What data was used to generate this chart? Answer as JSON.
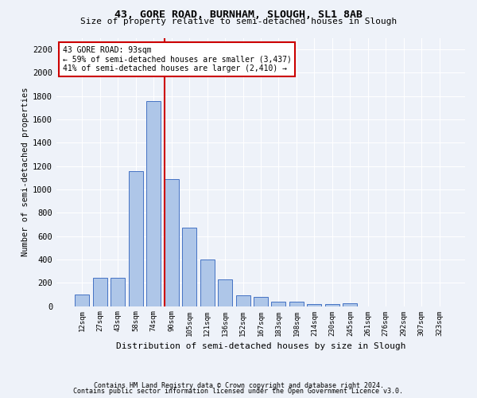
{
  "title1": "43, GORE ROAD, BURNHAM, SLOUGH, SL1 8AB",
  "title2": "Size of property relative to semi-detached houses in Slough",
  "xlabel": "Distribution of semi-detached houses by size in Slough",
  "ylabel": "Number of semi-detached properties",
  "categories": [
    "12sqm",
    "27sqm",
    "43sqm",
    "58sqm",
    "74sqm",
    "90sqm",
    "105sqm",
    "121sqm",
    "136sqm",
    "152sqm",
    "167sqm",
    "183sqm",
    "198sqm",
    "214sqm",
    "230sqm",
    "245sqm",
    "261sqm",
    "276sqm",
    "292sqm",
    "307sqm",
    "323sqm"
  ],
  "values": [
    100,
    240,
    240,
    1160,
    1760,
    1090,
    670,
    400,
    230,
    90,
    80,
    40,
    40,
    20,
    20,
    25,
    0,
    0,
    0,
    0,
    0
  ],
  "bar_color": "#aec6e8",
  "bar_edge_color": "#4472c4",
  "vline_color": "#cc0000",
  "annotation_title": "43 GORE ROAD: 93sqm",
  "annotation_line1": "← 59% of semi-detached houses are smaller (3,437)",
  "annotation_line2": "41% of semi-detached houses are larger (2,410) →",
  "annotation_box_color": "#ffffff",
  "annotation_box_edge": "#cc0000",
  "background_color": "#eef2f9",
  "grid_color": "#ffffff",
  "ylim": [
    0,
    2300
  ],
  "yticks": [
    0,
    200,
    400,
    600,
    800,
    1000,
    1200,
    1400,
    1600,
    1800,
    2000,
    2200
  ],
  "footnote1": "Contains HM Land Registry data © Crown copyright and database right 2024.",
  "footnote2": "Contains public sector information licensed under the Open Government Licence v3.0."
}
